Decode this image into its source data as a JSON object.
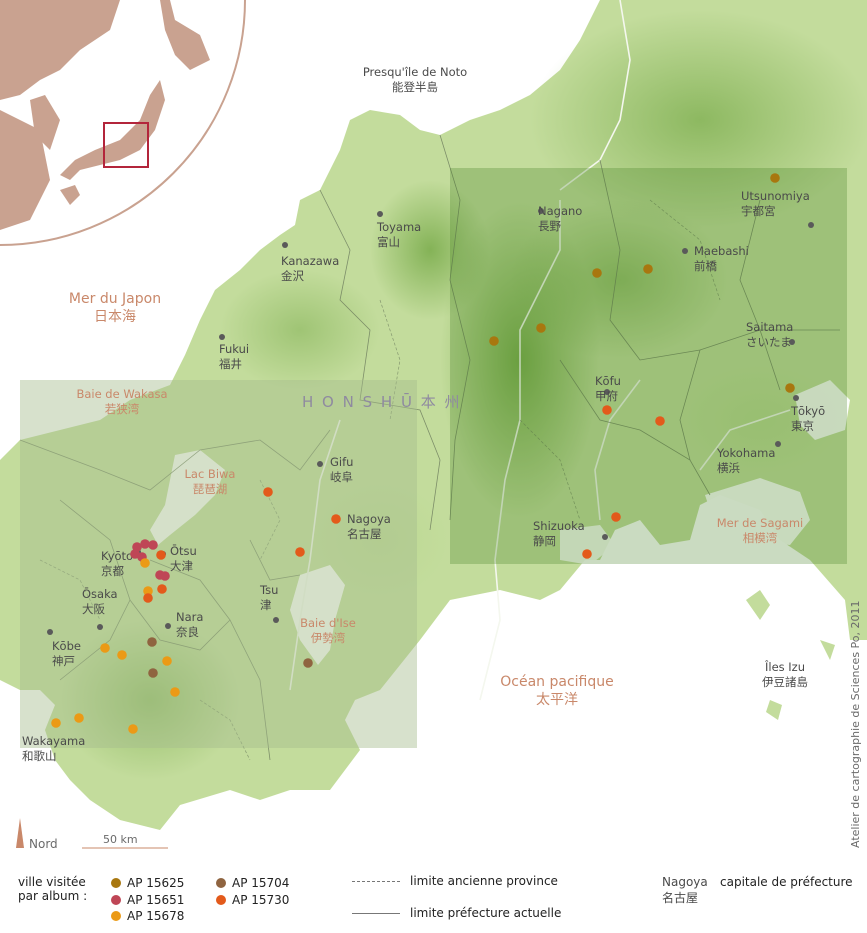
{
  "map": {
    "region_label": "H O N S H Ū   本 州",
    "credit": "Atelier de cartographie de Sciences Po, 2011",
    "north_label": "Nord",
    "scale_label": "50 km"
  },
  "seas": [
    {
      "fr": "Presqu'île de Noto",
      "ja": "能登半島",
      "style": "city"
    },
    {
      "fr": "Mer du Japon",
      "ja": "日本海",
      "style": "sea"
    },
    {
      "fr": "Baie de Wakasa",
      "ja": "若狭湾",
      "style": "seasm"
    },
    {
      "fr": "Lac Biwa",
      "ja": "琵琶湖",
      "style": "seasm"
    },
    {
      "fr": "Baie d'Ise",
      "ja": "伊勢湾",
      "style": "seasm"
    },
    {
      "fr": "Océan pacifique",
      "ja": "太平洋",
      "style": "sea"
    },
    {
      "fr": "Mer de Sagami",
      "ja": "相模湾",
      "style": "seasm"
    },
    {
      "fr": "Îles Izu",
      "ja": "伊豆諸島",
      "style": "city"
    }
  ],
  "cities": [
    {
      "fr": "Toyama",
      "ja": "富山"
    },
    {
      "fr": "Kanazawa",
      "ja": "金沢"
    },
    {
      "fr": "Fukui",
      "ja": "福井"
    },
    {
      "fr": "Nagano",
      "ja": "長野"
    },
    {
      "fr": "Maebashi",
      "ja": "前橋"
    },
    {
      "fr": "Utsunomiya",
      "ja": "宇都宮"
    },
    {
      "fr": "Saitama",
      "ja": "さいたま"
    },
    {
      "fr": "Tōkyō",
      "ja": "東京"
    },
    {
      "fr": "Yokohama",
      "ja": "横浜"
    },
    {
      "fr": "Kōfu",
      "ja": "甲府"
    },
    {
      "fr": "Shizuoka",
      "ja": "静岡"
    },
    {
      "fr": "Gifu",
      "ja": "岐阜"
    },
    {
      "fr": "Nagoya",
      "ja": "名古屋"
    },
    {
      "fr": "Tsu",
      "ja": "津"
    },
    {
      "fr": "Nara",
      "ja": "奈良"
    },
    {
      "fr": "Ōtsu",
      "ja": "大津"
    },
    {
      "fr": "Kyōto",
      "ja": "京都"
    },
    {
      "fr": "Ōsaka",
      "ja": "大阪"
    },
    {
      "fr": "Kōbe",
      "ja": "神戸"
    },
    {
      "fr": "Wakayama",
      "ja": "和歌山"
    }
  ],
  "legend": {
    "title_line1": "ville visitée",
    "title_line2": "par album :",
    "albums": [
      {
        "label": "AP 15625",
        "color": "#a8770f"
      },
      {
        "label": "AP 15651",
        "color": "#bf4656"
      },
      {
        "label": "AP 15678",
        "color": "#eb9a16"
      },
      {
        "label": "AP 15704",
        "color": "#8f6440"
      },
      {
        "label": "AP 15730",
        "color": "#e35a1b"
      }
    ],
    "line_old": "limite ancienne province",
    "line_new": "limite préfecture actuelle",
    "capital_fr": "Nagoya",
    "capital_ja": "名古屋",
    "capital_desc": "capitale de préfecture"
  }
}
